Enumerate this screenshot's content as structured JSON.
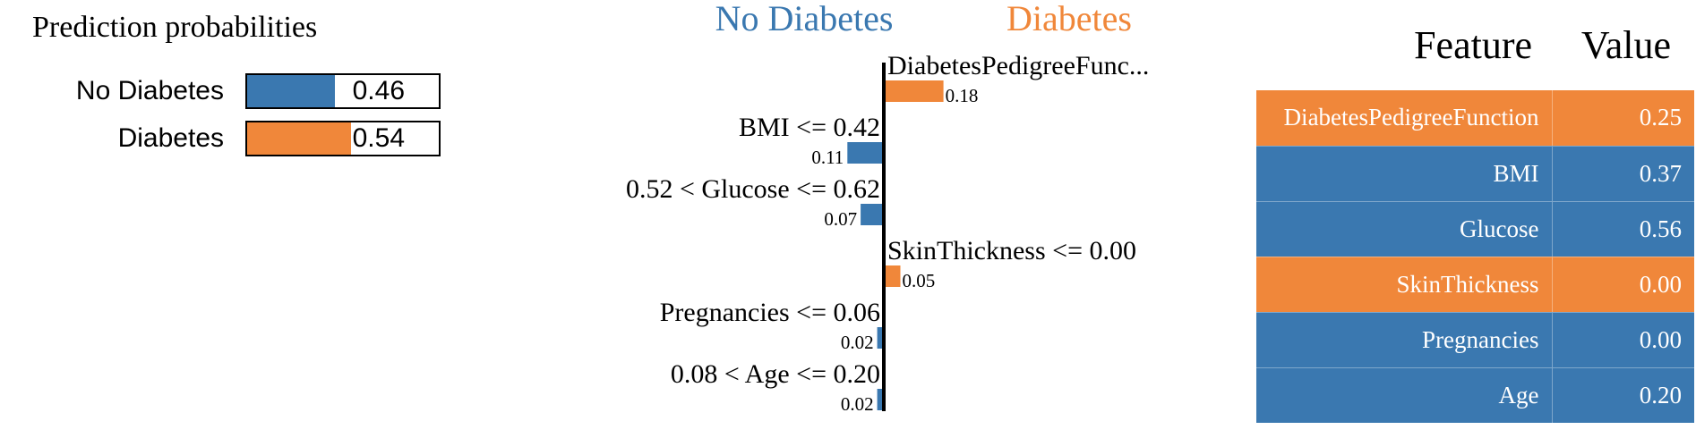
{
  "colors": {
    "negative": "#3a78b0",
    "positive": "#f0873a"
  },
  "prediction": {
    "title": "Prediction probabilities",
    "items": [
      {
        "label": "No Diabetes",
        "value": 0.46,
        "value_text": "0.46",
        "color": "#3a78b0"
      },
      {
        "label": "Diabetes",
        "value": 0.54,
        "value_text": "0.54",
        "color": "#f0873a"
      }
    ]
  },
  "chart_data": {
    "type": "bar",
    "orientation": "horizontal",
    "class_labels": {
      "negative": "No Diabetes",
      "positive": "Diabetes"
    },
    "categories": [
      "DiabetesPedigreeFunc...",
      "BMI <= 0.42",
      "0.52 < Glucose <= 0.62",
      "SkinThickness <= 0.00",
      "Pregnancies <= 0.06",
      "0.08 < Age <= 0.20"
    ],
    "values": [
      0.18,
      -0.11,
      -0.07,
      0.05,
      -0.02,
      -0.02
    ],
    "value_labels": [
      "0.18",
      "0.11",
      "0.07",
      "0.05",
      "0.02",
      "0.02"
    ]
  },
  "table": {
    "headers": {
      "feature": "Feature",
      "value": "Value"
    },
    "rows": [
      {
        "feature": "DiabetesPedigreeFunction",
        "value": "0.25",
        "sign": "positive"
      },
      {
        "feature": "BMI",
        "value": "0.37",
        "sign": "negative"
      },
      {
        "feature": "Glucose",
        "value": "0.56",
        "sign": "negative"
      },
      {
        "feature": "SkinThickness",
        "value": "0.00",
        "sign": "positive"
      },
      {
        "feature": "Pregnancies",
        "value": "0.00",
        "sign": "negative"
      },
      {
        "feature": "Age",
        "value": "0.20",
        "sign": "negative"
      }
    ]
  }
}
